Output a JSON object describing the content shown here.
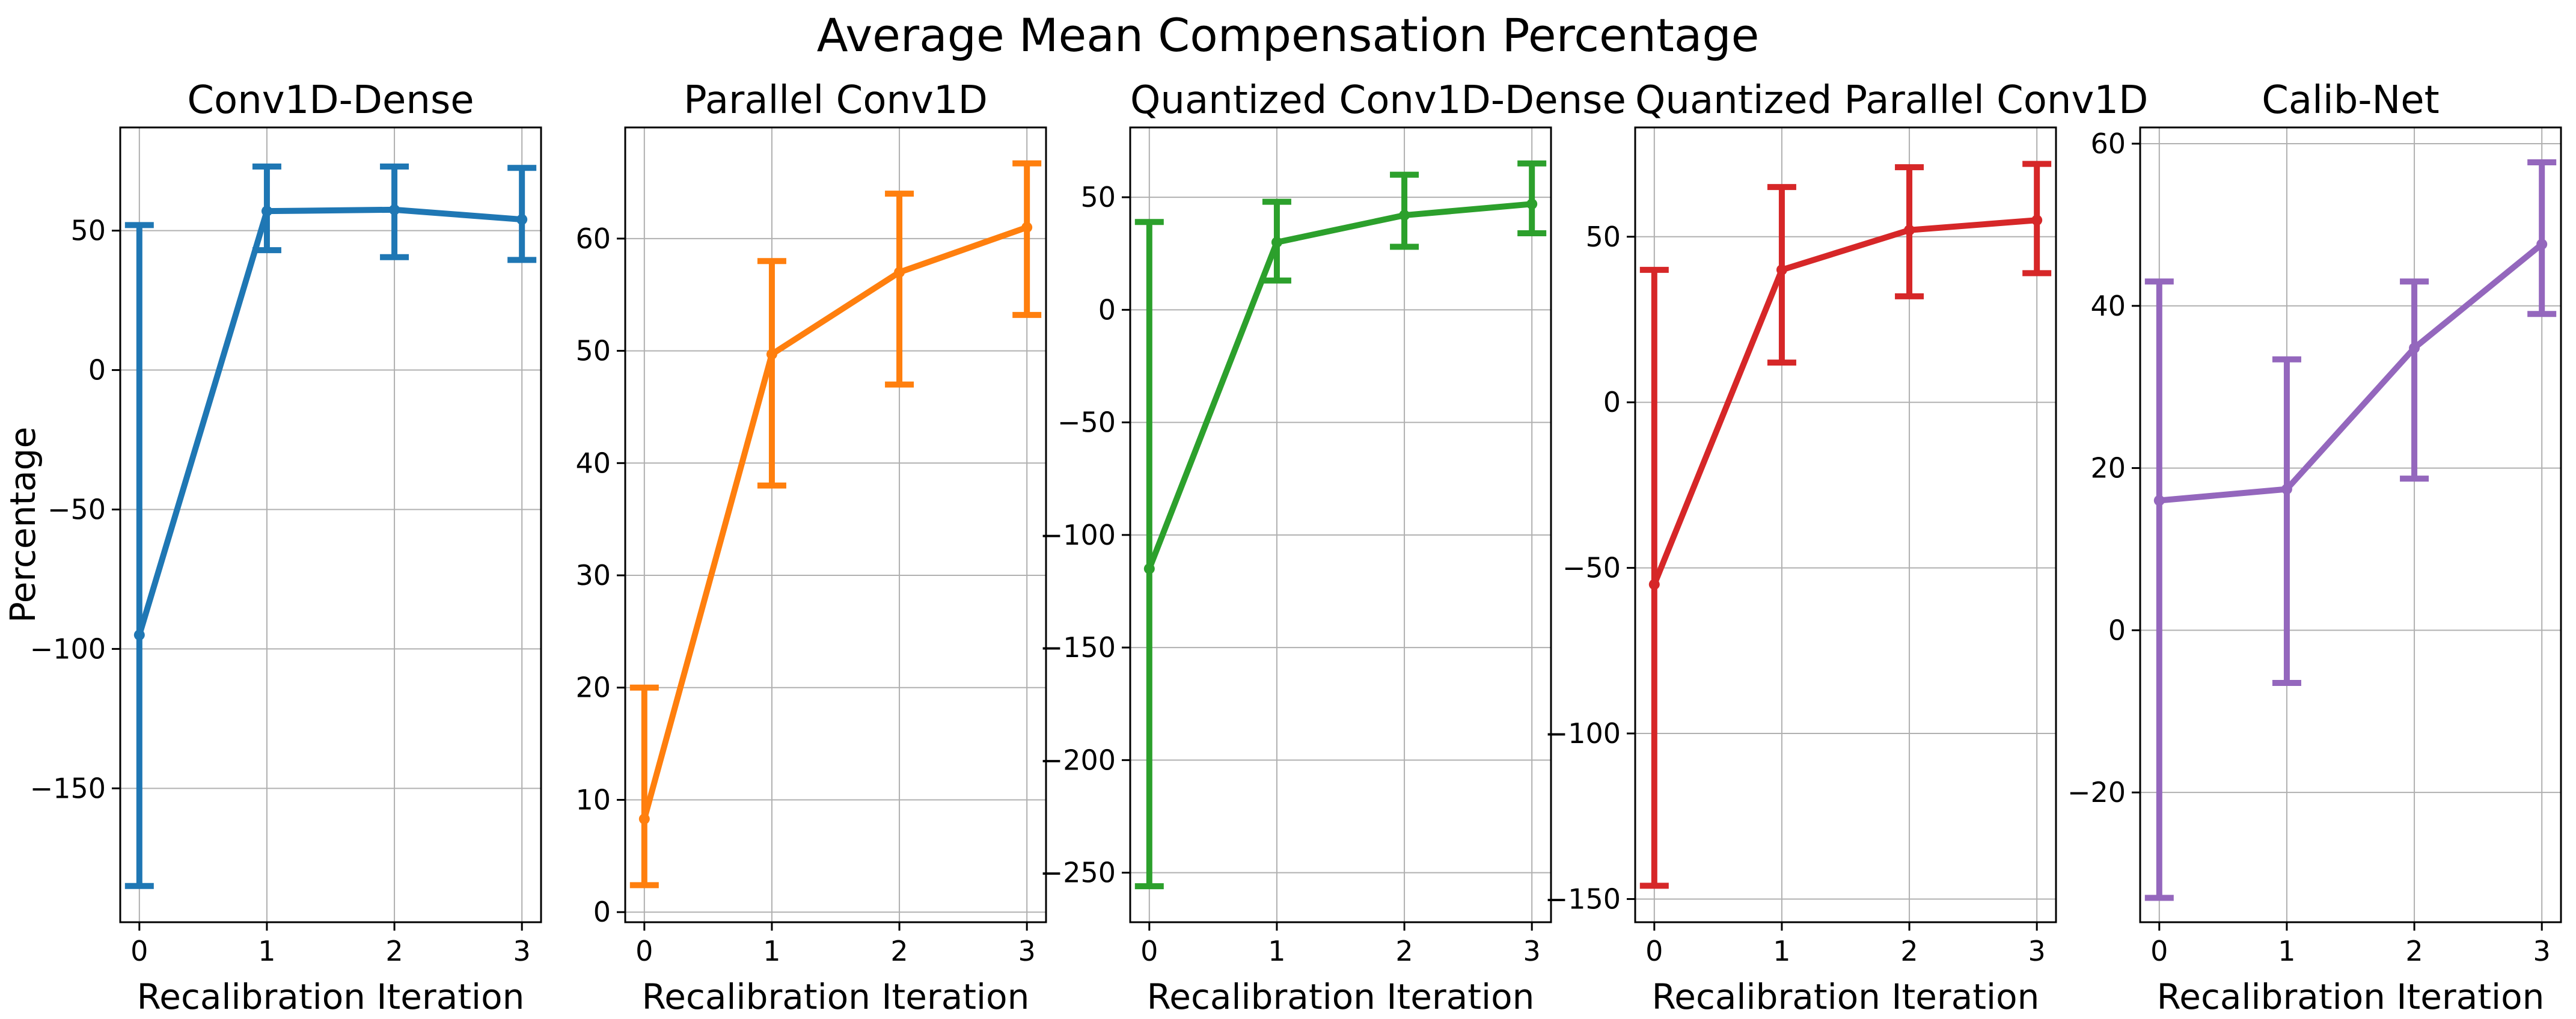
{
  "figure": {
    "suptitle": "Average Mean Compensation Percentage",
    "background": "#ffffff"
  },
  "style": {
    "grid_color": "#b0b0b0",
    "spine_color": "#000000",
    "tick_color": "#000000",
    "text_color": "#000000"
  },
  "chart_data": {
    "type": "line",
    "suptitle": "Average Mean Compensation Percentage",
    "xlabel": "Recalibration Iteration",
    "ylabel": "Percentage",
    "x": [
      0,
      1,
      2,
      3
    ],
    "xticks": [
      0,
      1,
      2,
      3
    ],
    "xlim": [
      -0.15,
      3.15
    ],
    "grid": true,
    "legend": "none",
    "marker": "circle",
    "error_bars": true,
    "panels": [
      {
        "title": "Conv1D-Dense",
        "color": "#1f77b4",
        "ylim": [
          -198,
          87
        ],
        "yticks": [
          50,
          0,
          -50,
          -100,
          -150
        ],
        "values": [
          -95,
          57,
          57.5,
          54
        ],
        "err_low": [
          -185,
          43,
          40.5,
          39.5
        ],
        "err_high": [
          52,
          73,
          73,
          72.5
        ]
      },
      {
        "title": "Parallel Conv1D",
        "color": "#ff7f0e",
        "ylim": [
          -0.9,
          69.9
        ],
        "yticks": [
          60,
          50,
          40,
          30,
          20,
          10,
          0
        ],
        "values": [
          8.3,
          49.7,
          57,
          61
        ],
        "err_low": [
          2.4,
          38,
          47,
          53.2
        ],
        "err_high": [
          20,
          58,
          64,
          66.7
        ]
      },
      {
        "title": "Quantized Conv1D-Dense",
        "color": "#2ca02c",
        "ylim": [
          -272,
          81
        ],
        "yticks": [
          50,
          0,
          -50,
          -100,
          -150,
          -200,
          -250
        ],
        "values": [
          -115,
          30,
          42,
          47
        ],
        "err_low": [
          -256,
          13,
          28,
          34
        ],
        "err_high": [
          39,
          48,
          60,
          65
        ]
      },
      {
        "title": "Quantized Parallel Conv1D",
        "color": "#d62728",
        "ylim": [
          -157,
          83
        ],
        "yticks": [
          50,
          0,
          -50,
          -100,
          -150
        ],
        "values": [
          -55,
          40,
          52,
          55
        ],
        "err_low": [
          -146,
          12,
          32,
          39
        ],
        "err_high": [
          40,
          65,
          71,
          72
        ]
      },
      {
        "title": "Calib-Net",
        "color": "#9467bd",
        "ylim": [
          -36,
          62
        ],
        "yticks": [
          60,
          40,
          20,
          0,
          -20
        ],
        "values": [
          16,
          17.4,
          34.8,
          47.6
        ],
        "err_low": [
          -33,
          -6.5,
          18.7,
          39
        ],
        "err_high": [
          43,
          33.4,
          43,
          57.7
        ]
      }
    ]
  }
}
